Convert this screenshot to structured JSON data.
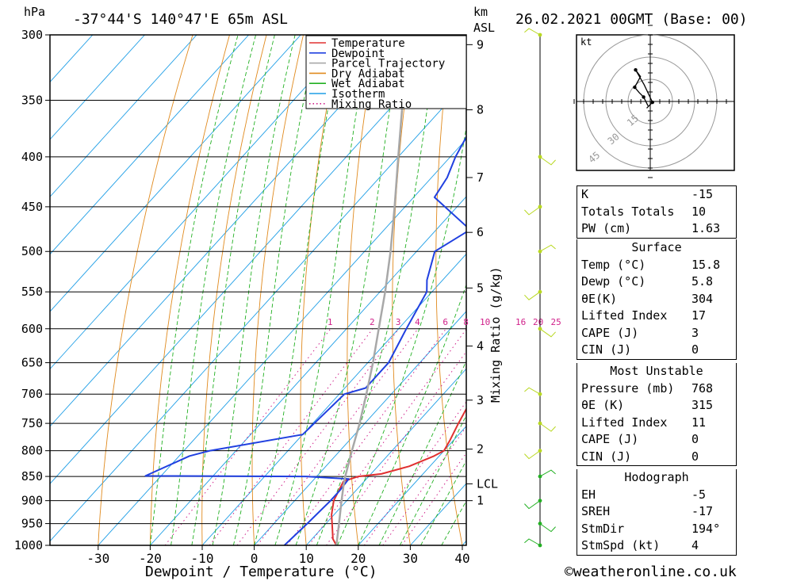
{
  "header": {
    "pressure_unit": "hPa",
    "location": "-37°44'S 140°47'E 65m ASL",
    "height_unit": "km",
    "height_ref": "ASL",
    "datetime": "26.02.2021 00GMT (Base: 00)"
  },
  "legend": [
    "Temperature",
    "Dewpoint",
    "Parcel Trajectory",
    "Dry Adiabat",
    "Wet Adiabat",
    "Isotherm",
    "Mixing Ratio"
  ],
  "colors": {
    "temperature": "#e03030",
    "dewpoint": "#2040e0",
    "parcel": "#a8a8a8",
    "dry_adiabat": "#e08a1e",
    "wet_adiabat": "#22b022",
    "isotherm": "#1e9ee6",
    "mixing_ratio": "#d0208a",
    "wind": "#b8d820"
  },
  "chart_data": {
    "type": "line",
    "subtype": "skew-t log-p sounding",
    "xlabel": "Dewpoint / Temperature (°C)",
    "ylabel": "Mixing Ratio (g/kg)",
    "x_ticks": [
      -30,
      -20,
      -10,
      0,
      10,
      20,
      30,
      40
    ],
    "pressure_ticks": [
      300,
      350,
      400,
      450,
      500,
      550,
      600,
      650,
      700,
      750,
      800,
      850,
      900,
      950,
      1000
    ],
    "height_ticks_km": [
      {
        "label": "9",
        "p": 307
      },
      {
        "label": "8",
        "p": 358
      },
      {
        "label": "7",
        "p": 420
      },
      {
        "label": "6",
        "p": 478
      },
      {
        "label": "5",
        "p": 545
      },
      {
        "label": "4",
        "p": 625
      },
      {
        "label": "3",
        "p": 710
      },
      {
        "label": "2",
        "p": 797
      },
      {
        "label": "LCL",
        "p": 865
      },
      {
        "label": "1",
        "p": 900
      }
    ],
    "mixing_ratio_labels": [
      "1",
      "2",
      "3",
      "4",
      "6",
      "8",
      "10",
      "16",
      "20",
      "25"
    ],
    "series": [
      {
        "name": "Temperature",
        "points": [
          [
            1000,
            15.8
          ],
          [
            985,
            14
          ],
          [
            960,
            12
          ],
          [
            930,
            9.5
          ],
          [
            900,
            7.5
          ],
          [
            860,
            6
          ],
          [
            850,
            8
          ],
          [
            845,
            12
          ],
          [
            830,
            16
          ],
          [
            810,
            19
          ],
          [
            800,
            20
          ],
          [
            780,
            19.3
          ],
          [
            750,
            18
          ],
          [
            720,
            16.8
          ],
          [
            700,
            15.7
          ],
          [
            650,
            13
          ],
          [
            600,
            10.4
          ],
          [
            550,
            7.5
          ],
          [
            500,
            2.8
          ],
          [
            450,
            -2.5
          ],
          [
            420,
            -6.5
          ],
          [
            400,
            -10
          ],
          [
            380,
            -11
          ],
          [
            350,
            -16.5
          ],
          [
            320,
            -22
          ],
          [
            300,
            -25.5
          ]
        ]
      },
      {
        "name": "Dewpoint",
        "points": [
          [
            1000,
            5.8
          ],
          [
            950,
            6.4
          ],
          [
            900,
            6.9
          ],
          [
            880,
            6.9
          ],
          [
            855,
            6.6
          ],
          [
            850,
            -2
          ],
          [
            849,
            -33
          ],
          [
            810,
            -28
          ],
          [
            800,
            -25
          ],
          [
            770,
            -10
          ],
          [
            700,
            -9
          ],
          [
            690,
            -6
          ],
          [
            650,
            -6
          ],
          [
            600,
            -8.5
          ],
          [
            550,
            -11
          ],
          [
            535,
            -13
          ],
          [
            500,
            -16.5
          ],
          [
            475,
            -13.5
          ],
          [
            440,
            -26
          ],
          [
            420,
            -27
          ],
          [
            400,
            -29
          ],
          [
            380,
            -30.5
          ],
          [
            350,
            -34
          ],
          [
            310,
            -38
          ],
          [
            300,
            -40
          ]
        ]
      },
      {
        "name": "Parcel Trajectory",
        "points": [
          [
            1000,
            15.8
          ],
          [
            950,
            12.5
          ],
          [
            900,
            9
          ],
          [
            865,
            6.5
          ],
          [
            850,
            5.5
          ],
          [
            800,
            2.3
          ],
          [
            750,
            -1
          ],
          [
            700,
            -4.8
          ],
          [
            650,
            -9
          ],
          [
            600,
            -13.8
          ],
          [
            550,
            -19
          ],
          [
            500,
            -25
          ],
          [
            450,
            -32
          ],
          [
            400,
            -40
          ],
          [
            350,
            -49
          ],
          [
            300,
            -60
          ]
        ]
      }
    ],
    "hodograph": {
      "unit": "kt",
      "ring_labels": [
        "15",
        "30",
        "45"
      ],
      "points_kt": [
        [
          -0.5,
          -1
        ],
        [
          -1.5,
          1
        ],
        [
          -2.5,
          2
        ],
        [
          -3.5,
          3.2
        ],
        [
          -2.2,
          5.6
        ],
        [
          -3.3,
          7.1
        ],
        [
          -1.4,
          3.8
        ],
        [
          0.5,
          -0.2
        ],
        [
          -0.8,
          -1.5
        ]
      ]
    },
    "wind_levels": [
      1000,
      950,
      900,
      850,
      800,
      750,
      700,
      600,
      550,
      500,
      450,
      400,
      300
    ]
  },
  "indices": [
    {
      "label": "K",
      "value": "-15"
    },
    {
      "label": "Totals Totals",
      "value": "10"
    },
    {
      "label": "PW (cm)",
      "value": "1.63"
    }
  ],
  "surface": {
    "title": "Surface",
    "rows": [
      {
        "label": "Temp (°C)",
        "value": "15.8"
      },
      {
        "label": "Dewp (°C)",
        "value": "5.8"
      },
      {
        "label": "θE(K)",
        "value": "304"
      },
      {
        "label": "Lifted Index",
        "value": "17"
      },
      {
        "label": "CAPE (J)",
        "value": "3"
      },
      {
        "label": "CIN (J)",
        "value": "0"
      }
    ]
  },
  "most_unstable": {
    "title": "Most Unstable",
    "rows": [
      {
        "label": "Pressure (mb)",
        "value": "768"
      },
      {
        "label": "θE (K)",
        "value": "315"
      },
      {
        "label": "Lifted Index",
        "value": "11"
      },
      {
        "label": "CAPE (J)",
        "value": "0"
      },
      {
        "label": "CIN (J)",
        "value": "0"
      }
    ]
  },
  "hodograph_table": {
    "title": "Hodograph",
    "rows": [
      {
        "label": "EH",
        "value": "-5"
      },
      {
        "label": "SREH",
        "value": "-17"
      },
      {
        "label": "StmDir",
        "value": "194°"
      },
      {
        "label": "StmSpd (kt)",
        "value": "4"
      }
    ]
  },
  "footer": "©weatheronline.co.uk"
}
